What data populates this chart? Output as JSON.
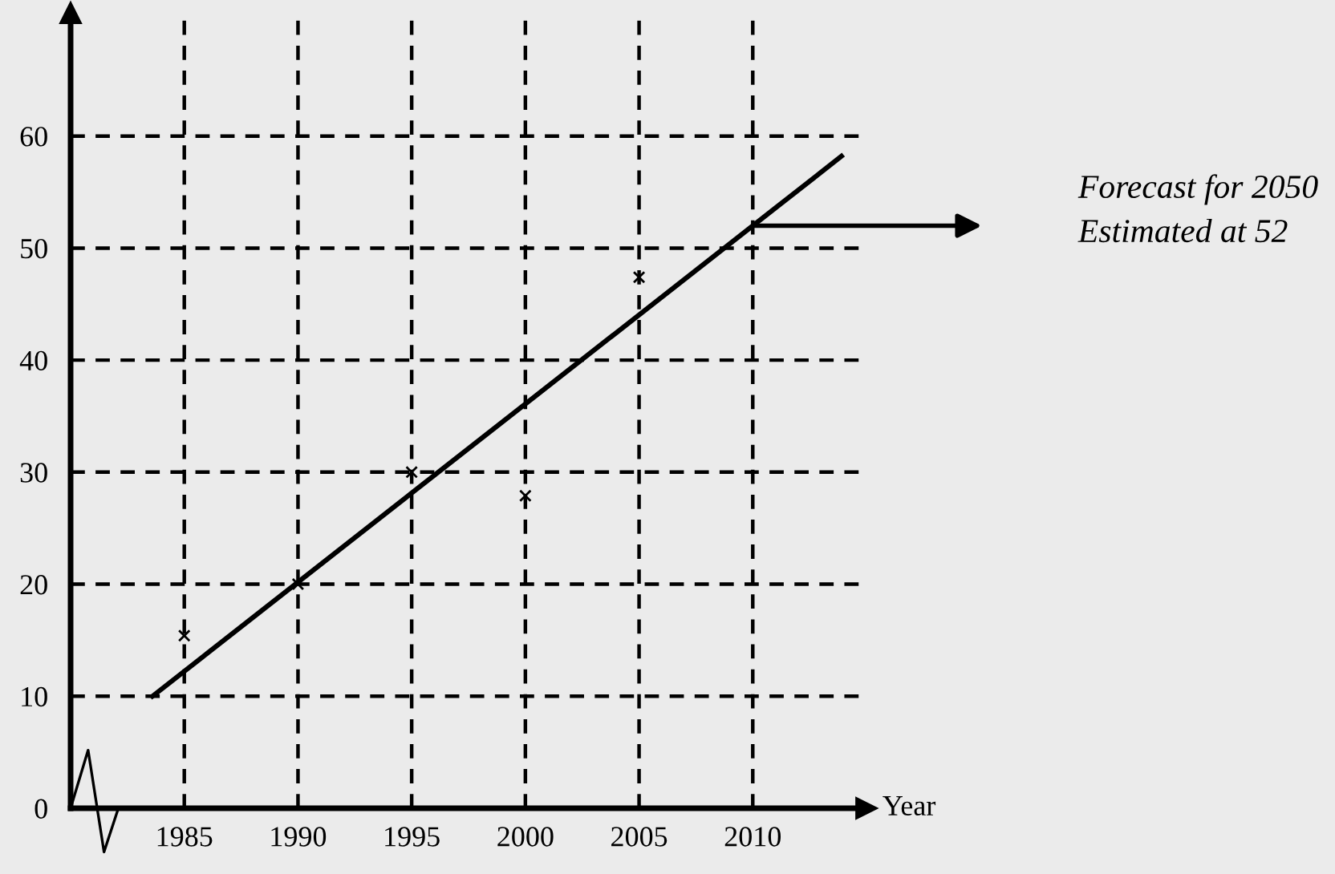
{
  "chart_data": {
    "type": "line",
    "xlabel": "Year",
    "xlim": [
      1980,
      2015
    ],
    "ylim": [
      0,
      71
    ],
    "xticks": [
      1985,
      1990,
      1995,
      2000,
      2005,
      2010
    ],
    "yticks": [
      0,
      10,
      20,
      30,
      40,
      50,
      60
    ],
    "grid": true,
    "series": [
      {
        "type": "scatter",
        "marker": "cross",
        "color": "#000000",
        "x": [
          1985,
          1990,
          1995,
          2000,
          2005
        ],
        "values": [
          15.4,
          20,
          30,
          27.9,
          47.4
        ]
      },
      {
        "color": "#000000",
        "x": [
          1983.6,
          2013.9
        ],
        "values": [
          10,
          58.2
        ],
        "line_style": "solid"
      }
    ],
    "annotations": [
      "Forecast for 2050\nEstimated at 52"
    ]
  }
}
